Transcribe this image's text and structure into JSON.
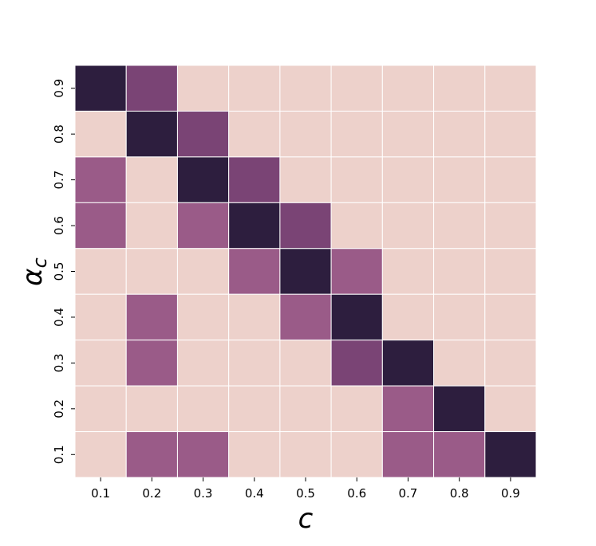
{
  "chart_data": {
    "type": "heatmap",
    "title": "",
    "xlabel": "c",
    "ylabel": "α",
    "ylabel_subscript": "c",
    "x_categories": [
      "0.1",
      "0.2",
      "0.3",
      "0.4",
      "0.5",
      "0.6",
      "0.7",
      "0.8",
      "0.9"
    ],
    "y_categories": [
      "0.9",
      "0.8",
      "0.7",
      "0.6",
      "0.5",
      "0.4",
      "0.3",
      "0.2",
      "0.1"
    ],
    "values": [
      [
        3,
        2,
        0,
        0,
        0,
        0,
        0,
        0,
        0
      ],
      [
        0,
        3,
        2,
        0,
        0,
        0,
        0,
        0,
        0
      ],
      [
        1,
        0,
        3,
        2,
        0,
        0,
        0,
        0,
        0
      ],
      [
        1,
        0,
        1,
        3,
        2,
        0,
        0,
        0,
        0
      ],
      [
        0,
        0,
        0,
        1,
        3,
        1,
        0,
        0,
        0
      ],
      [
        0,
        1,
        0,
        0,
        1,
        3,
        0,
        0,
        0
      ],
      [
        0,
        1,
        0,
        0,
        0,
        2,
        3,
        0,
        0
      ],
      [
        0,
        0,
        0,
        0,
        0,
        0,
        1,
        3,
        0
      ],
      [
        0,
        1,
        1,
        0,
        0,
        0,
        1,
        1,
        3
      ]
    ],
    "colorscale": [
      "#edd1cb",
      "#9a5b88",
      "#7a4475",
      "#2d1e3e"
    ],
    "grid": true,
    "colorbar": false
  }
}
